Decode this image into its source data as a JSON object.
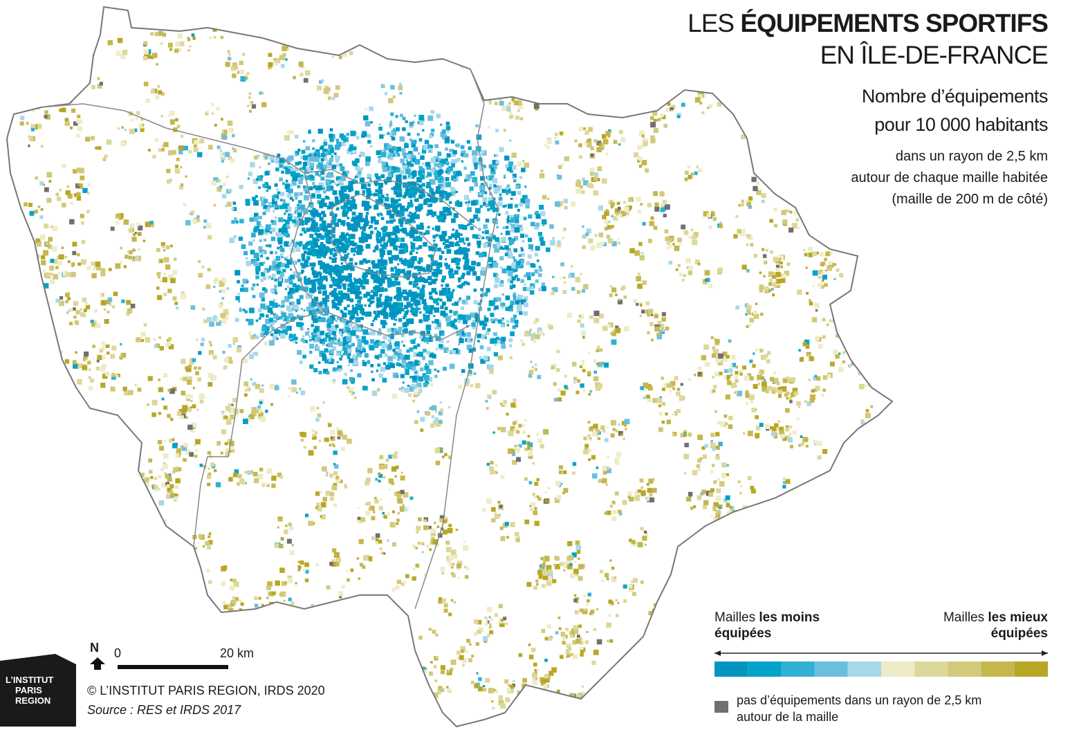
{
  "header": {
    "title_prefix": "LES ",
    "title_bold": "ÉQUIPEMENTS SPORTIFS",
    "title_line2": "EN ÎLE-DE-FRANCE",
    "subtitle": [
      "Nombre d’équipements",
      "pour 10 000 habitants"
    ],
    "description": [
      "dans un rayon de 2,5 km",
      "autour de chaque maille habitée",
      "(maille de 200 m de côté)"
    ]
  },
  "legend": {
    "left": {
      "prefix": "Mailles ",
      "bold": "les moins",
      "line2": "équipées"
    },
    "right": {
      "prefix": "Mailles ",
      "bold": "les mieux",
      "line2": "équipées"
    },
    "colors": [
      "#0095c0",
      "#00a3c9",
      "#2fb0d4",
      "#6bbfdc",
      "#a7d8ea",
      "#eeecc8",
      "#ddd79a",
      "#d2c97a",
      "#c5b74e",
      "#b8a726"
    ],
    "no_equipment": {
      "color": "#707070",
      "lines": [
        "pas d’équipements dans un rayon de 2,5 km",
        "autour de la maille"
      ]
    }
  },
  "scale": {
    "north": "N",
    "start": "0",
    "end": "20 km"
  },
  "credits": "© L’INSTITUT PARIS REGION, IRDS 2020",
  "source": "Source : RES et IRDS 2017",
  "logo": [
    "L’INSTITUT",
    "PARIS",
    "REGION"
  ]
}
